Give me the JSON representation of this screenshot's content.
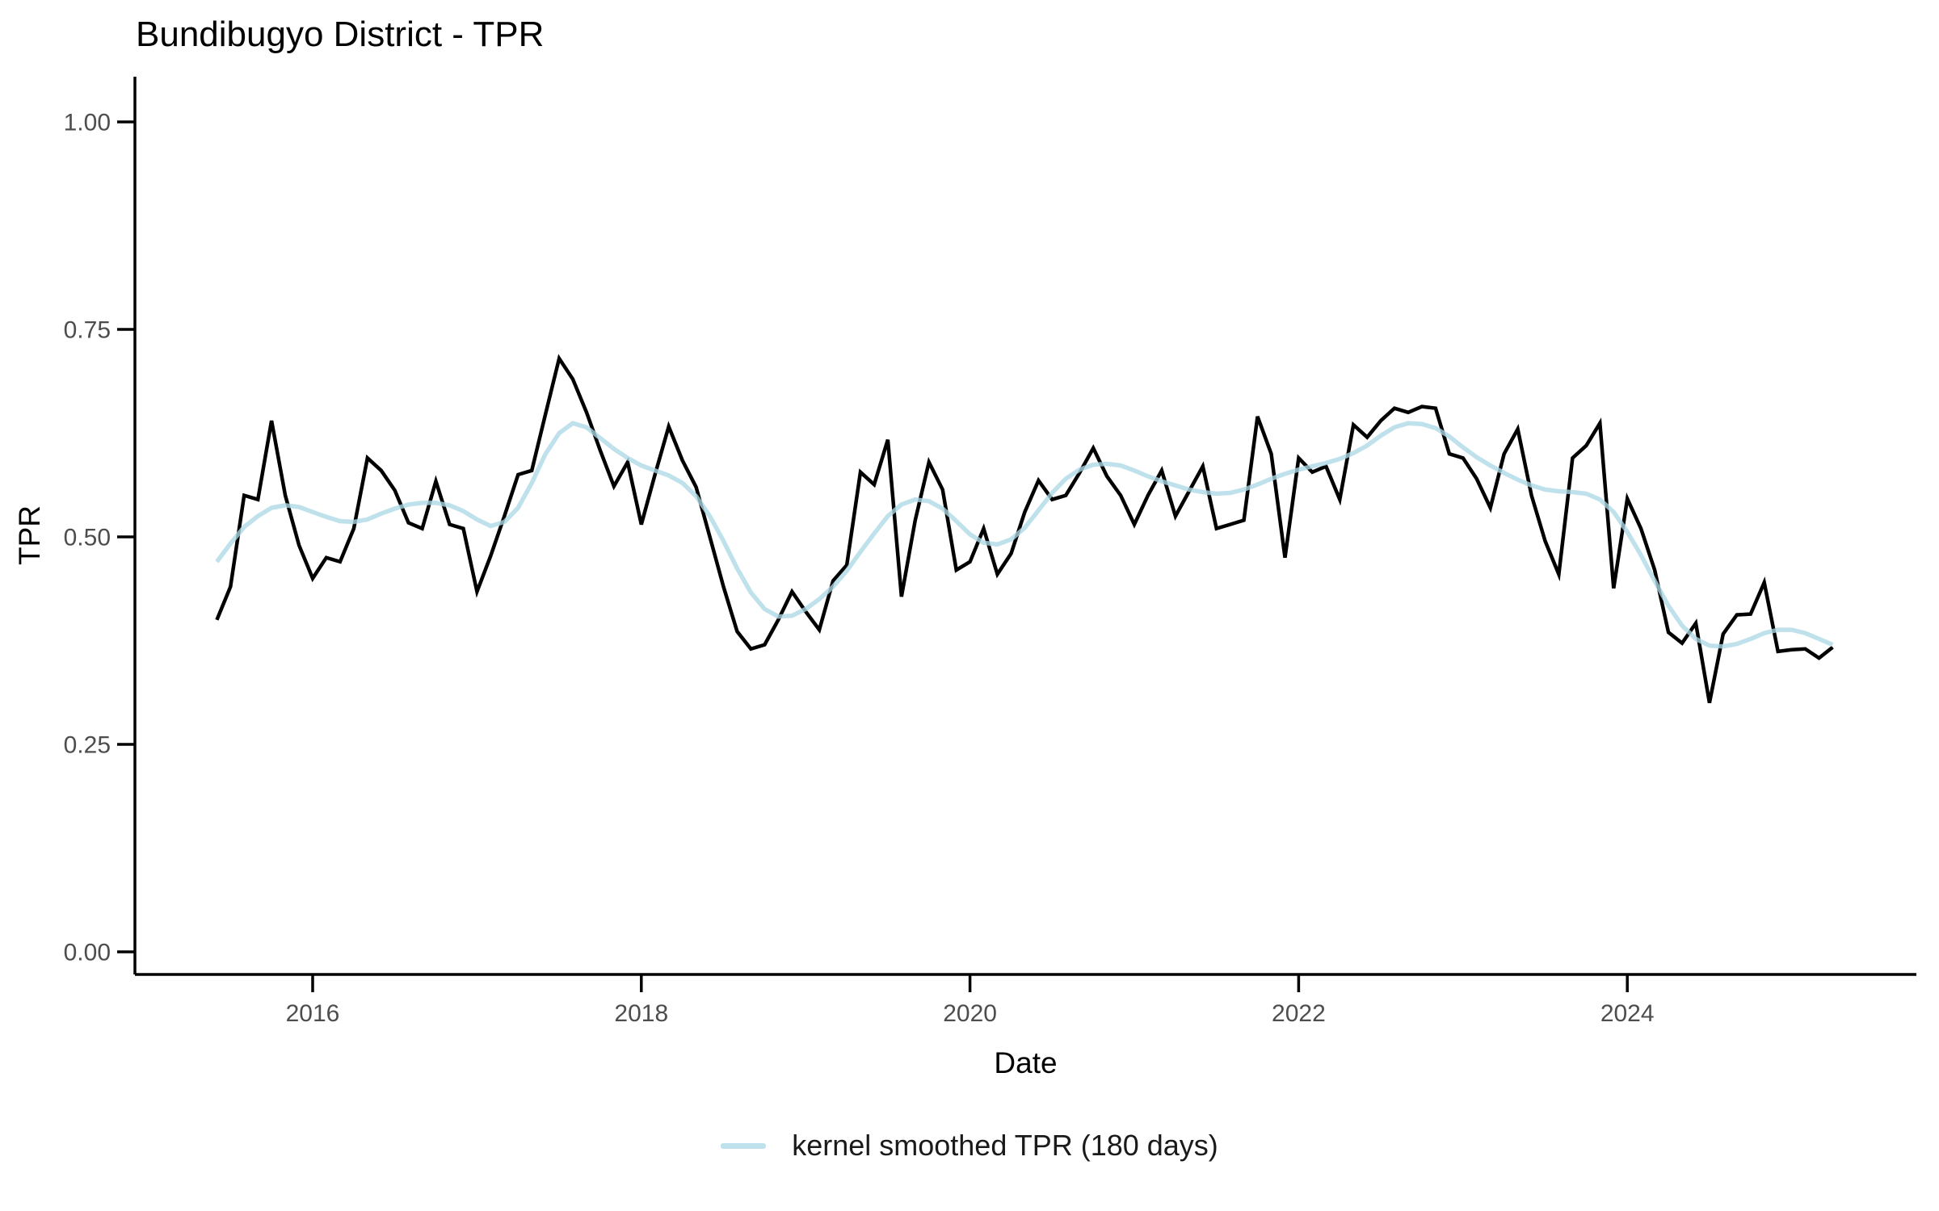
{
  "title": "Bundibugyo District - TPR",
  "axes": {
    "y": {
      "label": "TPR",
      "tick_labels": [
        "1.00",
        "0.75",
        "0.50",
        "0.25",
        "0.00"
      ],
      "tick_values": [
        1.0,
        0.75,
        0.5,
        0.25,
        0.0
      ]
    },
    "x": {
      "label": "Date",
      "tick_labels": [
        "2016",
        "2018",
        "2020",
        "2022",
        "2024"
      ],
      "tick_values": [
        2016,
        2018,
        2020,
        2022,
        2024
      ]
    }
  },
  "legend": {
    "items": [
      {
        "label": "kernel smoothed TPR (180 days)",
        "color": "#ADD8E6",
        "swatch": "line"
      }
    ]
  },
  "colors": {
    "raw_line": "#000000",
    "smoothed_line": "#ADD8E6",
    "smoothed_opacity": 0.78,
    "axis": "#000000",
    "tick_text": "#4d4d4d",
    "background": "#ffffff"
  },
  "chart_data": {
    "type": "line",
    "title": "Bundibugyo District - TPR",
    "xlabel": "Date",
    "ylabel": "TPR",
    "ylim": [
      0,
      1
    ],
    "x_ticks": [
      2016,
      2018,
      2020,
      2022,
      2024
    ],
    "y_ticks": [
      0.0,
      0.25,
      0.5,
      0.75,
      1.0
    ],
    "grid": false,
    "legend_position": "bottom",
    "dates": [
      "2015-06",
      "2015-07",
      "2015-08",
      "2015-09",
      "2015-10",
      "2015-11",
      "2015-12",
      "2016-01",
      "2016-02",
      "2016-03",
      "2016-04",
      "2016-05",
      "2016-06",
      "2016-07",
      "2016-08",
      "2016-09",
      "2016-10",
      "2016-11",
      "2016-12",
      "2017-01",
      "2017-02",
      "2017-03",
      "2017-04",
      "2017-05",
      "2017-06",
      "2017-07",
      "2017-08",
      "2017-09",
      "2017-10",
      "2017-11",
      "2017-12",
      "2018-01",
      "2018-02",
      "2018-03",
      "2018-04",
      "2018-05",
      "2018-06",
      "2018-07",
      "2018-08",
      "2018-09",
      "2018-10",
      "2018-11",
      "2018-12",
      "2019-01",
      "2019-02",
      "2019-03",
      "2019-04",
      "2019-05",
      "2019-06",
      "2019-07",
      "2019-08",
      "2019-09",
      "2019-10",
      "2019-11",
      "2019-12",
      "2020-01",
      "2020-02",
      "2020-03",
      "2020-04",
      "2020-05",
      "2020-06",
      "2020-07",
      "2020-08",
      "2020-09",
      "2020-10",
      "2020-11",
      "2020-12",
      "2021-01",
      "2021-02",
      "2021-03",
      "2021-04",
      "2021-05",
      "2021-06",
      "2021-07",
      "2021-08",
      "2021-09",
      "2021-10",
      "2021-11",
      "2021-12",
      "2022-01",
      "2022-02",
      "2022-03",
      "2022-04",
      "2022-05",
      "2022-06",
      "2022-07",
      "2022-08",
      "2022-09",
      "2022-10",
      "2022-11",
      "2022-12",
      "2023-01",
      "2023-02",
      "2023-03",
      "2023-04",
      "2023-05",
      "2023-06",
      "2023-07",
      "2023-08",
      "2023-09",
      "2023-10",
      "2023-11",
      "2023-12",
      "2024-01",
      "2024-02",
      "2024-03",
      "2024-04",
      "2024-05",
      "2024-06",
      "2024-07",
      "2024-08",
      "2024-09",
      "2024-10",
      "2024-11",
      "2024-12",
      "2025-01",
      "2025-02",
      "2025-03",
      "2025-04"
    ],
    "series": [
      {
        "name": "TPR",
        "color": "#000000",
        "values": [
          0.4,
          0.44,
          0.55,
          0.545,
          0.64,
          0.55,
          0.49,
          0.45,
          0.475,
          0.47,
          0.51,
          0.595,
          0.58,
          0.556,
          0.517,
          0.51,
          0.567,
          0.515,
          0.51,
          0.434,
          0.477,
          0.525,
          0.575,
          0.58,
          0.648,
          0.715,
          0.69,
          0.65,
          0.604,
          0.561,
          0.59,
          0.515,
          0.575,
          0.633,
          0.592,
          0.56,
          0.5,
          0.44,
          0.386,
          0.365,
          0.37,
          0.4,
          0.434,
          0.41,
          0.388,
          0.447,
          0.466,
          0.578,
          0.563,
          0.617,
          0.428,
          0.52,
          0.59,
          0.557,
          0.46,
          0.47,
          0.51,
          0.455,
          0.48,
          0.53,
          0.568,
          0.545,
          0.55,
          0.577,
          0.607,
          0.573,
          0.55,
          0.515,
          0.55,
          0.58,
          0.525,
          0.555,
          0.585,
          0.51,
          0.515,
          0.52,
          0.645,
          0.6,
          0.475,
          0.595,
          0.578,
          0.585,
          0.545,
          0.635,
          0.62,
          0.64,
          0.655,
          0.65,
          0.657,
          0.655,
          0.6,
          0.595,
          0.57,
          0.535,
          0.6,
          0.63,
          0.55,
          0.495,
          0.455,
          0.595,
          0.61,
          0.637,
          0.438,
          0.546,
          0.51,
          0.46,
          0.385,
          0.372,
          0.396,
          0.3,
          0.383,
          0.406,
          0.407,
          0.445,
          0.362,
          0.364,
          0.365,
          0.354,
          0.367
        ]
      },
      {
        "name": "kernel smoothed TPR (180 days)",
        "color": "#ADD8E6",
        "values": [
          0.47,
          0.492,
          0.512,
          0.525,
          0.535,
          0.538,
          0.536,
          0.53,
          0.524,
          0.519,
          0.518,
          0.521,
          0.528,
          0.534,
          0.539,
          0.541,
          0.541,
          0.538,
          0.531,
          0.521,
          0.513,
          0.518,
          0.535,
          0.565,
          0.6,
          0.625,
          0.637,
          0.632,
          0.619,
          0.606,
          0.595,
          0.586,
          0.58,
          0.574,
          0.565,
          0.549,
          0.525,
          0.495,
          0.462,
          0.433,
          0.413,
          0.404,
          0.405,
          0.413,
          0.425,
          0.44,
          0.459,
          0.482,
          0.504,
          0.525,
          0.539,
          0.545,
          0.543,
          0.534,
          0.519,
          0.503,
          0.493,
          0.491,
          0.497,
          0.511,
          0.532,
          0.553,
          0.57,
          0.581,
          0.587,
          0.588,
          0.586,
          0.58,
          0.573,
          0.567,
          0.562,
          0.557,
          0.554,
          0.552,
          0.553,
          0.557,
          0.563,
          0.57,
          0.576,
          0.581,
          0.585,
          0.589,
          0.594,
          0.601,
          0.61,
          0.622,
          0.632,
          0.637,
          0.636,
          0.631,
          0.621,
          0.608,
          0.596,
          0.586,
          0.577,
          0.569,
          0.562,
          0.557,
          0.555,
          0.554,
          0.552,
          0.545,
          0.53,
          0.506,
          0.478,
          0.447,
          0.417,
          0.393,
          0.377,
          0.369,
          0.368,
          0.371,
          0.377,
          0.384,
          0.388,
          0.388,
          0.384,
          0.377,
          0.37
        ]
      }
    ]
  }
}
